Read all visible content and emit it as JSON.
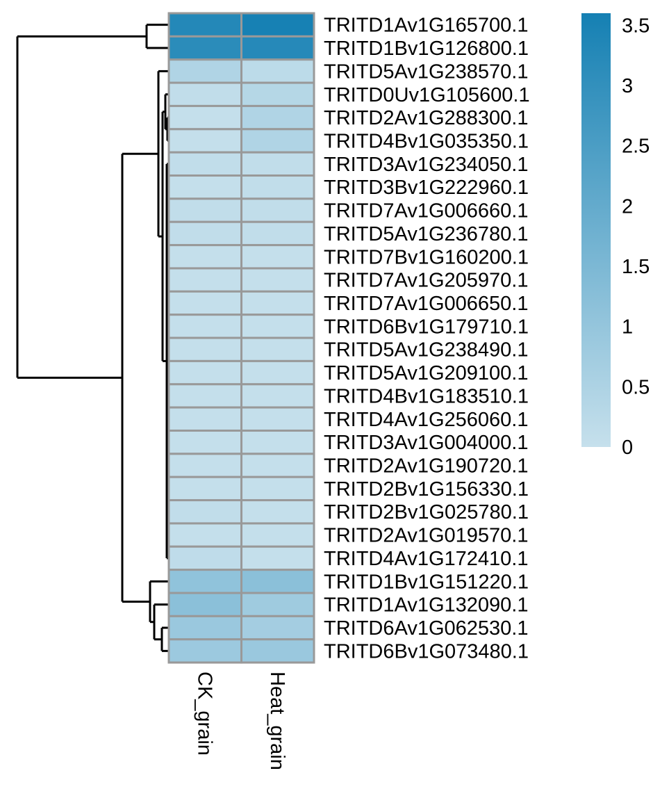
{
  "chart_data": {
    "type": "heatmap",
    "columns": [
      "CK_grain",
      "Heat_grain"
    ],
    "rows": [
      "TRITD1Av1G165700.1",
      "TRITD1Bv1G126800.1",
      "TRITD5Av1G238570.1",
      "TRITD0Uv1G105600.1",
      "TRITD2Av1G288300.1",
      "TRITD4Bv1G035350.1",
      "TRITD3Av1G234050.1",
      "TRITD3Bv1G222960.1",
      "TRITD7Av1G006660.1",
      "TRITD5Av1G236780.1",
      "TRITD7Bv1G160200.1",
      "TRITD7Av1G205970.1",
      "TRITD7Av1G006650.1",
      "TRITD6Bv1G179710.1",
      "TRITD5Av1G238490.1",
      "TRITD5Av1G209100.1",
      "TRITD4Bv1G183510.1",
      "TRITD4Av1G256060.1",
      "TRITD3Av1G004000.1",
      "TRITD2Av1G190720.1",
      "TRITD2Bv1G156330.1",
      "TRITD2Bv1G025780.1",
      "TRITD2Av1G019570.1",
      "TRITD4Av1G172410.1",
      "TRITD1Bv1G151220.1",
      "TRITD1Av1G132090.1",
      "TRITD6Av1G062530.1",
      "TRITD6Bv1G073480.1"
    ],
    "values": [
      [
        3.3,
        3.55
      ],
      [
        3.15,
        3.25
      ],
      [
        0.45,
        0.2
      ],
      [
        0.1,
        0.35
      ],
      [
        0.05,
        0.45
      ],
      [
        0.05,
        0.45
      ],
      [
        0.1,
        0.1
      ],
      [
        0.05,
        0.1
      ],
      [
        0.1,
        0.1
      ],
      [
        0.1,
        0.1
      ],
      [
        0.05,
        0.05
      ],
      [
        0.05,
        0.05
      ],
      [
        0.05,
        0.05
      ],
      [
        0.05,
        0.05
      ],
      [
        0.05,
        0.05
      ],
      [
        0.05,
        0.05
      ],
      [
        0.05,
        0.05
      ],
      [
        0.05,
        0.05
      ],
      [
        0.05,
        0.05
      ],
      [
        0.05,
        0.05
      ],
      [
        0.05,
        0.05
      ],
      [
        0.1,
        0.05
      ],
      [
        0.05,
        0.05
      ],
      [
        0.15,
        0.05
      ],
      [
        1.1,
        1.2
      ],
      [
        1.2,
        0.8
      ],
      [
        0.9,
        0.7
      ],
      [
        0.85,
        0.9
      ]
    ],
    "colorscale": {
      "min": 0,
      "max": 3.6,
      "low_color": "#c6e0ec",
      "high_color": "#1580b3"
    },
    "legend": {
      "ticks": [
        0,
        0.5,
        1,
        1.5,
        2,
        2.5,
        3,
        3.5
      ],
      "tick_labels": [
        "0",
        "0.5",
        "1",
        "1.5",
        "2",
        "2.5",
        "3",
        "3.5"
      ],
      "placement": "top-right"
    },
    "row_dendrogram": [
      {
        "leaves": [
          0,
          1
        ]
      },
      {
        "leaves": [
          2,
          23
        ],
        "subclusters": [
          [
            2
          ],
          [
            3,
            4,
            5
          ],
          [
            6,
            23
          ]
        ]
      },
      {
        "leaves": [
          24,
          27
        ],
        "subclusters": [
          [
            24
          ],
          [
            25
          ],
          [
            26,
            27
          ]
        ]
      },
      {
        "merge": "root",
        "groups": [
          [
            0,
            1
          ],
          [
            2,
            27
          ]
        ]
      }
    ]
  }
}
